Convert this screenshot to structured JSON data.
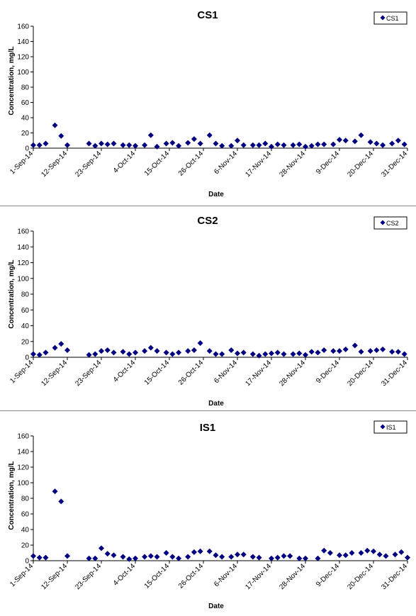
{
  "chart_data": [
    {
      "type": "scatter",
      "title": "CS1",
      "xlabel": "Date",
      "ylabel": "Concentration, mg/L",
      "ylim": [
        0,
        160
      ],
      "yticks": [
        0,
        20,
        40,
        60,
        80,
        100,
        120,
        140,
        160
      ],
      "xlim": [
        "2014-09-01",
        "2014-12-31"
      ],
      "xticks": [
        "1-Sep-14",
        "12-Sep-14",
        "23-Sep-14",
        "4-Oct-14",
        "15-Oct-14",
        "26-Oct-14",
        "6-Nov-14",
        "17-Nov-14",
        "28-Nov-14",
        "9-Dec-14",
        "20-Dec-14",
        "31-Dec-14"
      ],
      "grid": false,
      "legend": "top-right",
      "series": [
        {
          "name": "CS1",
          "color": "#000080",
          "x": [
            "2014-09-01",
            "2014-09-03",
            "2014-09-05",
            "2014-09-08",
            "2014-09-10",
            "2014-09-12",
            "2014-09-19",
            "2014-09-21",
            "2014-09-23",
            "2014-09-25",
            "2014-09-27",
            "2014-09-30",
            "2014-10-02",
            "2014-10-04",
            "2014-10-07",
            "2014-10-09",
            "2014-10-11",
            "2014-10-14",
            "2014-10-16",
            "2014-10-18",
            "2014-10-21",
            "2014-10-23",
            "2014-10-25",
            "2014-10-28",
            "2014-10-30",
            "2014-11-01",
            "2014-11-04",
            "2014-11-06",
            "2014-11-08",
            "2014-11-11",
            "2014-11-13",
            "2014-11-15",
            "2014-11-17",
            "2014-11-19",
            "2014-11-21",
            "2014-11-24",
            "2014-11-26",
            "2014-11-28",
            "2014-11-30",
            "2014-12-02",
            "2014-12-04",
            "2014-12-07",
            "2014-12-09",
            "2014-12-11",
            "2014-12-14",
            "2014-12-16",
            "2014-12-19",
            "2014-12-21",
            "2014-12-23",
            "2014-12-26",
            "2014-12-28",
            "2014-12-30"
          ],
          "y": [
            4,
            4,
            6,
            30,
            16,
            4,
            6,
            3,
            6,
            5,
            6,
            4,
            4,
            3,
            4,
            17,
            2,
            6,
            7,
            3,
            7,
            12,
            6,
            17,
            6,
            3,
            3,
            10,
            4,
            4,
            4,
            6,
            2,
            5,
            4,
            4,
            5,
            2,
            3,
            5,
            5,
            5,
            11,
            10,
            9,
            17,
            8,
            6,
            4,
            6,
            10,
            5
          ]
        }
      ]
    },
    {
      "type": "scatter",
      "title": "CS2",
      "xlabel": "Date",
      "ylabel": "Concentration, mg/L",
      "ylim": [
        0,
        160
      ],
      "yticks": [
        0,
        20,
        40,
        60,
        80,
        100,
        120,
        140,
        160
      ],
      "xlim": [
        "2014-09-01",
        "2014-12-31"
      ],
      "xticks": [
        "1-Sep-14",
        "12-Sep-14",
        "23-Sep-14",
        "4-Oct-14",
        "15-Oct-14",
        "26-Oct-14",
        "6-Nov-14",
        "17-Nov-14",
        "28-Nov-14",
        "9-Dec-14",
        "20-Dec-14",
        "31-Dec-14"
      ],
      "grid": false,
      "legend": "top-right",
      "series": [
        {
          "name": "CS2",
          "color": "#000080",
          "x": [
            "2014-09-01",
            "2014-09-03",
            "2014-09-05",
            "2014-09-08",
            "2014-09-10",
            "2014-09-12",
            "2014-09-19",
            "2014-09-21",
            "2014-09-23",
            "2014-09-25",
            "2014-09-27",
            "2014-09-30",
            "2014-10-02",
            "2014-10-04",
            "2014-10-07",
            "2014-10-09",
            "2014-10-11",
            "2014-10-14",
            "2014-10-16",
            "2014-10-18",
            "2014-10-21",
            "2014-10-23",
            "2014-10-25",
            "2014-10-28",
            "2014-10-30",
            "2014-11-01",
            "2014-11-04",
            "2014-11-06",
            "2014-11-08",
            "2014-11-11",
            "2014-11-13",
            "2014-11-15",
            "2014-11-17",
            "2014-11-19",
            "2014-11-21",
            "2014-11-24",
            "2014-11-26",
            "2014-11-28",
            "2014-11-30",
            "2014-12-02",
            "2014-12-04",
            "2014-12-07",
            "2014-12-09",
            "2014-12-11",
            "2014-12-14",
            "2014-12-16",
            "2014-12-19",
            "2014-12-21",
            "2014-12-23",
            "2014-12-26",
            "2014-12-28",
            "2014-12-30"
          ],
          "y": [
            4,
            3,
            6,
            12,
            17,
            9,
            3,
            4,
            8,
            9,
            6,
            7,
            4,
            6,
            8,
            12,
            8,
            6,
            4,
            6,
            8,
            9,
            18,
            8,
            4,
            4,
            9,
            5,
            6,
            4,
            2,
            4,
            5,
            6,
            4,
            4,
            5,
            3,
            7,
            6,
            9,
            8,
            8,
            10,
            15,
            7,
            8,
            9,
            10,
            7,
            7,
            4
          ]
        }
      ]
    },
    {
      "type": "scatter",
      "title": "IS1",
      "xlabel": "Date",
      "ylabel": "Concentration, mg/L",
      "ylim": [
        0,
        160
      ],
      "yticks": [
        0,
        20,
        40,
        60,
        80,
        100,
        120,
        140,
        160
      ],
      "xlim": [
        "2014-09-01",
        "2014-12-31"
      ],
      "xticks": [
        "1-Sep-14",
        "12-Sep-14",
        "23-Sep-14",
        "4-Oct-14",
        "15-Oct-14",
        "26-Oct-14",
        "6-Nov-14",
        "17-Nov-14",
        "28-Nov-14",
        "9-Dec-14",
        "20-Dec-14",
        "31-Dec-14"
      ],
      "grid": false,
      "legend": "top-right",
      "series": [
        {
          "name": "IS1",
          "color": "#000080",
          "x": [
            "2014-09-01",
            "2014-09-03",
            "2014-09-05",
            "2014-09-08",
            "2014-09-10",
            "2014-09-12",
            "2014-09-19",
            "2014-09-21",
            "2014-09-23",
            "2014-09-25",
            "2014-09-27",
            "2014-09-30",
            "2014-10-02",
            "2014-10-04",
            "2014-10-07",
            "2014-10-09",
            "2014-10-11",
            "2014-10-14",
            "2014-10-16",
            "2014-10-18",
            "2014-10-21",
            "2014-10-23",
            "2014-10-25",
            "2014-10-28",
            "2014-10-30",
            "2014-11-01",
            "2014-11-04",
            "2014-11-06",
            "2014-11-08",
            "2014-11-11",
            "2014-11-13",
            "2014-11-17",
            "2014-11-19",
            "2014-11-21",
            "2014-11-23",
            "2014-11-26",
            "2014-11-28",
            "2014-12-02",
            "2014-12-04",
            "2014-12-06",
            "2014-12-09",
            "2014-12-11",
            "2014-12-13",
            "2014-12-16",
            "2014-12-18",
            "2014-12-20",
            "2014-12-22",
            "2014-12-24",
            "2014-12-27",
            "2014-12-29",
            "2014-12-31"
          ],
          "y": [
            6,
            4,
            4,
            89,
            76,
            6,
            3,
            3,
            16,
            9,
            7,
            5,
            2,
            3,
            5,
            6,
            5,
            10,
            5,
            3,
            5,
            11,
            12,
            12,
            7,
            5,
            5,
            8,
            8,
            5,
            4,
            3,
            4,
            6,
            6,
            3,
            3,
            3,
            13,
            10,
            7,
            7,
            10,
            10,
            13,
            12,
            8,
            6,
            8,
            11,
            4
          ]
        }
      ]
    }
  ]
}
